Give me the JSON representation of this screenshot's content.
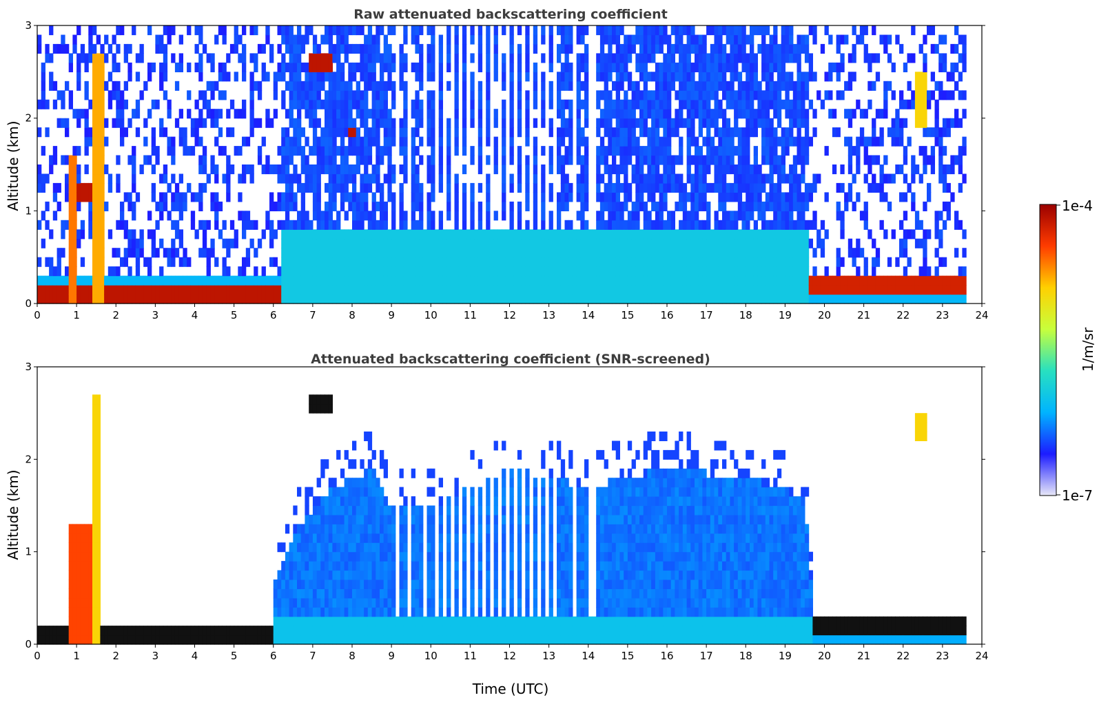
{
  "chart_data": [
    {
      "type": "heatmap",
      "title": "Raw attenuated backscattering coefficient",
      "xlabel": "",
      "ylabel": "Altitude (km)",
      "xlim": [
        0,
        24
      ],
      "ylim": [
        0,
        3
      ],
      "x_ticks": [
        "0",
        "1",
        "2",
        "3",
        "4",
        "5",
        "6",
        "7",
        "8",
        "9",
        "10",
        "11",
        "12",
        "13",
        "14",
        "15",
        "16",
        "17",
        "18",
        "19",
        "20",
        "21",
        "22",
        "23",
        "24"
      ],
      "y_ticks": [
        "0",
        "1",
        "2",
        "3"
      ],
      "mode": "raw",
      "cells_x_res_hours": 0.1,
      "cells_y_res_km": 0.1,
      "data_gaps_utc": [
        9.15,
        9.45,
        9.85,
        10.15,
        10.35,
        10.55,
        10.75,
        10.95,
        11.15,
        11.35,
        11.55,
        11.75,
        11.95,
        12.15,
        12.35,
        12.55,
        12.75,
        12.95,
        13.1,
        13.6,
        14.0,
        14.1
      ],
      "features": [
        {
          "kind": "surface_layer",
          "x_start": 0.0,
          "x_end": 6.2,
          "y_bottom": 0.05,
          "y_top": 0.22,
          "level": 0.95
        },
        {
          "kind": "boundary_layer",
          "x_start": 6.2,
          "x_end": 19.6,
          "y_bottom": 0.0,
          "y_top": 0.8,
          "level": 0.35
        },
        {
          "kind": "surface_layer",
          "x_start": 19.6,
          "x_end": 23.6,
          "y_bottom": 0.15,
          "y_top": 0.3,
          "level": 0.92
        },
        {
          "kind": "cloud",
          "x_start": 0.8,
          "x_end": 1.0,
          "y_bottom": 0.0,
          "y_top": 1.6,
          "level": 0.8
        },
        {
          "kind": "cloud",
          "x_start": 1.0,
          "x_end": 1.5,
          "y_bottom": 1.1,
          "y_top": 1.3,
          "level": 0.95
        },
        {
          "kind": "cloud",
          "x_start": 1.45,
          "x_end": 1.7,
          "y_bottom": 0.0,
          "y_top": 2.7,
          "level": 0.75
        },
        {
          "kind": "cloud",
          "x_start": 6.9,
          "x_end": 7.5,
          "y_bottom": 2.5,
          "y_top": 2.7,
          "level": 0.95
        },
        {
          "kind": "cloud",
          "x_start": 7.9,
          "x_end": 8.05,
          "y_bottom": 1.85,
          "y_top": 1.95,
          "level": 0.95
        },
        {
          "kind": "cloud",
          "x_start": 22.3,
          "x_end": 22.6,
          "y_bottom": 1.9,
          "y_top": 2.5,
          "level": 0.7
        }
      ]
    },
    {
      "type": "heatmap",
      "title": "Attenuated backscattering coefficient (SNR-screened)",
      "xlabel": "Time (UTC)",
      "ylabel": "Altitude (km)",
      "xlim": [
        0,
        24
      ],
      "ylim": [
        0,
        3
      ],
      "x_ticks": [
        "0",
        "1",
        "2",
        "3",
        "4",
        "5",
        "6",
        "7",
        "8",
        "9",
        "10",
        "11",
        "12",
        "13",
        "14",
        "15",
        "16",
        "17",
        "18",
        "19",
        "20",
        "21",
        "22",
        "23",
        "24"
      ],
      "y_ticks": [
        "0",
        "1",
        "2",
        "3"
      ],
      "mode": "screened",
      "screened_top_km": [
        [
          6.0,
          0.6
        ],
        [
          6.5,
          1.2
        ],
        [
          7.5,
          1.7
        ],
        [
          8.5,
          1.9
        ],
        [
          9.0,
          1.5
        ],
        [
          10.0,
          1.5
        ],
        [
          12.0,
          1.9
        ],
        [
          14.0,
          1.7
        ],
        [
          16.0,
          1.9
        ],
        [
          18.0,
          1.8
        ],
        [
          19.5,
          1.6
        ],
        [
          19.7,
          0.4
        ],
        [
          23.6,
          0.3
        ]
      ],
      "features": [
        {
          "kind": "surface_layer",
          "x_start": 0.0,
          "x_end": 6.0,
          "y_bottom": 0.05,
          "y_top": 0.2,
          "level": 1.0
        },
        {
          "kind": "cloud",
          "x_start": 0.85,
          "x_end": 1.6,
          "y_bottom": 0.0,
          "y_top": 1.3,
          "level": 0.85
        },
        {
          "kind": "cloud",
          "x_start": 1.45,
          "x_end": 1.65,
          "y_bottom": 0.0,
          "y_top": 2.7,
          "level": 0.7
        },
        {
          "kind": "cloud",
          "x_start": 6.9,
          "x_end": 7.5,
          "y_bottom": 2.5,
          "y_top": 2.7,
          "level": 1.0
        },
        {
          "kind": "surface_layer",
          "x_start": 19.7,
          "x_end": 23.6,
          "y_bottom": 0.15,
          "y_top": 0.28,
          "level": 1.0
        },
        {
          "kind": "cloud",
          "x_start": 22.3,
          "x_end": 22.6,
          "y_bottom": 2.2,
          "y_top": 2.5,
          "level": 0.7
        }
      ]
    }
  ],
  "colorbar": {
    "label": "1/m/sr",
    "max_label": "1e-4",
    "min_label": "1e-7",
    "colormap": [
      "#e8e8f8",
      "#1c1cff",
      "#00b4ff",
      "#28e0c0",
      "#c8ff3c",
      "#ffd000",
      "#ff3c00",
      "#9a0000"
    ]
  }
}
